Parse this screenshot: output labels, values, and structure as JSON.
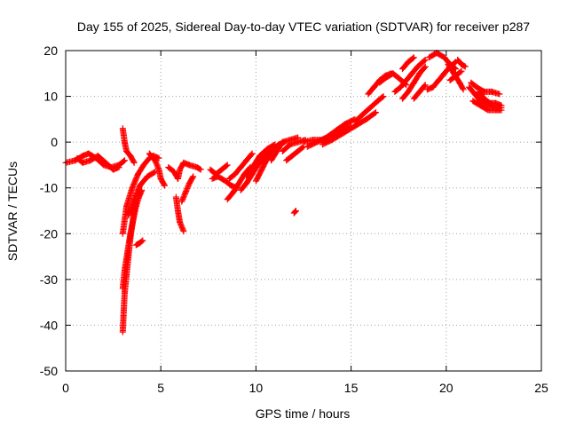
{
  "chart_data": {
    "type": "scatter",
    "title": "Day 155 of 2025, Sidereal Day-to-day VTEC variation (SDTVAR) for receiver p287",
    "xlabel": "GPS time / hours",
    "ylabel": "SDTVAR / TECUs",
    "xlim": [
      0,
      25
    ],
    "ylim": [
      -50,
      20
    ],
    "xticks": [
      0,
      5,
      10,
      15,
      20,
      25
    ],
    "yticks": [
      -50,
      -40,
      -30,
      -20,
      -10,
      0,
      10,
      20
    ],
    "grid": true,
    "marker": "+",
    "series": [
      {
        "name": "SDTVAR",
        "color": "#ff0000",
        "tracks": [
          [
            [
              0.0,
              -4.5
            ],
            [
              0.5,
              -4.0
            ],
            [
              0.9,
              -3.0
            ],
            [
              1.2,
              -2.5
            ],
            [
              1.6,
              -3.5
            ],
            [
              2.0,
              -5.0
            ],
            [
              2.4,
              -5.5
            ],
            [
              2.8,
              -5.0
            ],
            [
              3.1,
              -4.0
            ]
          ],
          [
            [
              0.6,
              -3.5
            ],
            [
              0.9,
              -4.5
            ],
            [
              1.3,
              -4.0
            ],
            [
              1.7,
              -3.0
            ],
            [
              2.1,
              -4.5
            ],
            [
              2.5,
              -6.0
            ],
            [
              2.8,
              -5.5
            ]
          ],
          [
            [
              3.0,
              3.0
            ],
            [
              3.1,
              0.0
            ],
            [
              3.2,
              -2.0
            ],
            [
              3.4,
              -3.0
            ],
            [
              3.6,
              -4.5
            ]
          ],
          [
            [
              3.0,
              -41.5
            ],
            [
              3.05,
              -37.0
            ],
            [
              3.1,
              -33.0
            ],
            [
              3.2,
              -29.0
            ],
            [
              3.3,
              -25.0
            ],
            [
              3.4,
              -21.0
            ],
            [
              3.5,
              -18.0
            ],
            [
              3.6,
              -15.0
            ],
            [
              3.7,
              -13.0
            ]
          ],
          [
            [
              3.0,
              -32.0
            ],
            [
              3.1,
              -28.0
            ],
            [
              3.25,
              -24.0
            ],
            [
              3.4,
              -20.0
            ],
            [
              3.55,
              -17.0
            ],
            [
              3.7,
              -14.0
            ],
            [
              3.85,
              -12.0
            ],
            [
              4.0,
              -10.5
            ]
          ],
          [
            [
              3.0,
              -20.0
            ],
            [
              3.2,
              -14.0
            ],
            [
              3.5,
              -10.0
            ],
            [
              3.8,
              -7.0
            ],
            [
              4.1,
              -5.0
            ],
            [
              4.4,
              -3.5
            ],
            [
              4.6,
              -3.0
            ],
            [
              4.9,
              -3.5
            ]
          ],
          [
            [
              3.3,
              -16.0
            ],
            [
              3.6,
              -12.5
            ],
            [
              3.9,
              -9.5
            ],
            [
              4.3,
              -7.5
            ],
            [
              4.7,
              -6.5
            ]
          ],
          [
            [
              3.7,
              -22.5
            ],
            [
              3.9,
              -22.0
            ],
            [
              4.05,
              -21.5
            ]
          ],
          [
            [
              4.4,
              -2.5
            ],
            [
              4.7,
              -4.0
            ],
            [
              4.9,
              -6.0
            ],
            [
              5.0,
              -8.0
            ],
            [
              5.2,
              -9.5
            ]
          ],
          [
            [
              5.4,
              -5.5
            ],
            [
              5.7,
              -6.5
            ],
            [
              5.9,
              -8.0
            ]
          ],
          [
            [
              5.8,
              -12.0
            ],
            [
              5.9,
              -15.0
            ],
            [
              6.0,
              -17.5
            ],
            [
              6.2,
              -19.5
            ]
          ],
          [
            [
              5.9,
              -8.0
            ],
            [
              6.0,
              -6.0
            ],
            [
              6.2,
              -4.5
            ],
            [
              6.5,
              -5.0
            ],
            [
              6.9,
              -5.5
            ],
            [
              7.1,
              -6.0
            ]
          ],
          [
            [
              6.1,
              -13.0
            ],
            [
              6.3,
              -11.0
            ],
            [
              6.5,
              -9.0
            ],
            [
              6.7,
              -7.5
            ]
          ],
          [
            [
              7.6,
              -6.0
            ],
            [
              7.9,
              -7.0
            ],
            [
              8.2,
              -6.0
            ],
            [
              8.5,
              -5.0
            ]
          ],
          [
            [
              7.7,
              -8.0
            ],
            [
              8.0,
              -7.5
            ],
            [
              8.4,
              -8.5
            ],
            [
              8.7,
              -9.5
            ],
            [
              9.0,
              -10.0
            ]
          ],
          [
            [
              8.5,
              -12.5
            ],
            [
              8.8,
              -11.0
            ],
            [
              9.1,
              -9.0
            ],
            [
              9.4,
              -7.0
            ],
            [
              9.7,
              -5.5
            ]
          ],
          [
            [
              8.6,
              -8.0
            ],
            [
              8.9,
              -7.0
            ],
            [
              9.2,
              -5.5
            ],
            [
              9.5,
              -4.0
            ],
            [
              9.8,
              -2.5
            ]
          ],
          [
            [
              9.2,
              -10.5
            ],
            [
              9.5,
              -9.0
            ],
            [
              9.8,
              -7.0
            ],
            [
              10.1,
              -5.0
            ],
            [
              10.4,
              -3.5
            ],
            [
              10.7,
              -2.0
            ]
          ],
          [
            [
              9.5,
              -7.5
            ],
            [
              9.9,
              -5.0
            ],
            [
              10.2,
              -3.0
            ],
            [
              10.6,
              -1.5
            ],
            [
              11.0,
              -0.5
            ]
          ],
          [
            [
              10.0,
              -8.5
            ],
            [
              10.3,
              -6.0
            ],
            [
              10.6,
              -3.5
            ],
            [
              10.9,
              -1.5
            ],
            [
              11.2,
              -0.5
            ],
            [
              11.5,
              0.0
            ]
          ],
          [
            [
              10.8,
              -4.0
            ],
            [
              11.1,
              -2.0
            ],
            [
              11.4,
              0.0
            ],
            [
              11.8,
              0.5
            ],
            [
              12.2,
              1.0
            ]
          ],
          [
            [
              11.6,
              -4.0
            ],
            [
              11.9,
              -3.0
            ],
            [
              12.2,
              -2.0
            ],
            [
              12.5,
              -1.0
            ]
          ],
          [
            [
              11.4,
              -2.0
            ],
            [
              11.8,
              -0.5
            ],
            [
              12.2,
              0.0
            ],
            [
              12.6,
              0.5
            ]
          ],
          [
            [
              12.5,
              0.0
            ],
            [
              13.0,
              0.5
            ],
            [
              13.5,
              0.5
            ],
            [
              14.0,
              1.5
            ],
            [
              14.5,
              2.5
            ],
            [
              15.0,
              3.5
            ]
          ],
          [
            [
              12.7,
              -1.0
            ],
            [
              13.2,
              0.0
            ],
            [
              13.7,
              1.0
            ],
            [
              14.2,
              2.5
            ],
            [
              14.7,
              4.0
            ],
            [
              15.2,
              5.0
            ]
          ],
          [
            [
              13.5,
              -0.5
            ],
            [
              14.0,
              0.5
            ],
            [
              14.6,
              2.0
            ],
            [
              15.2,
              3.5
            ],
            [
              15.8,
              5.0
            ],
            [
              16.3,
              6.5
            ]
          ],
          [
            [
              15.2,
              4.5
            ],
            [
              15.6,
              6.0
            ],
            [
              16.0,
              7.5
            ],
            [
              16.4,
              9.0
            ],
            [
              16.7,
              10.0
            ]
          ],
          [
            [
              12.0,
              -15.5
            ],
            [
              12.1,
              -15.0
            ]
          ],
          [
            [
              15.9,
              10.5
            ],
            [
              16.2,
              12.0
            ],
            [
              16.5,
              13.5
            ],
            [
              16.8,
              14.5
            ],
            [
              17.1,
              15.0
            ]
          ],
          [
            [
              16.5,
              13.0
            ],
            [
              16.8,
              14.0
            ],
            [
              17.2,
              15.0
            ],
            [
              17.5,
              14.0
            ],
            [
              17.9,
              12.5
            ]
          ],
          [
            [
              17.3,
              11.0
            ],
            [
              17.6,
              12.0
            ],
            [
              17.9,
              13.5
            ],
            [
              18.2,
              15.0
            ],
            [
              18.5,
              16.5
            ],
            [
              18.9,
              18.0
            ]
          ],
          [
            [
              17.7,
              9.5
            ],
            [
              18.0,
              11.0
            ],
            [
              18.3,
              13.0
            ],
            [
              18.6,
              15.0
            ],
            [
              18.9,
              16.5
            ]
          ],
          [
            [
              19.1,
              18.5
            ],
            [
              19.5,
              19.5
            ],
            [
              19.9,
              18.5
            ],
            [
              20.2,
              17.0
            ],
            [
              20.5,
              16.0
            ]
          ],
          [
            [
              19.0,
              11.5
            ],
            [
              19.3,
              12.0
            ],
            [
              19.6,
              13.5
            ],
            [
              19.9,
              15.0
            ],
            [
              20.2,
              16.5
            ],
            [
              20.5,
              17.5
            ]
          ],
          [
            [
              20.1,
              17.0
            ],
            [
              20.4,
              15.0
            ],
            [
              20.7,
              13.0
            ],
            [
              20.9,
              11.5
            ]
          ],
          [
            [
              20.2,
              13.5
            ],
            [
              20.5,
              14.5
            ],
            [
              20.8,
              15.5
            ]
          ],
          [
            [
              20.6,
              18.0
            ],
            [
              20.8,
              17.0
            ],
            [
              21.0,
              16.5
            ]
          ],
          [
            [
              21.2,
              12.0
            ],
            [
              21.5,
              10.5
            ],
            [
              21.8,
              9.0
            ],
            [
              22.2,
              8.0
            ],
            [
              22.6,
              7.5
            ],
            [
              22.9,
              7.5
            ]
          ],
          [
            [
              21.4,
              9.0
            ],
            [
              21.8,
              8.0
            ],
            [
              22.2,
              7.0
            ],
            [
              22.6,
              7.0
            ],
            [
              22.9,
              7.0
            ]
          ],
          [
            [
              21.3,
              13.0
            ],
            [
              21.6,
              12.0
            ],
            [
              22.0,
              11.0
            ],
            [
              22.4,
              11.0
            ],
            [
              22.8,
              10.5
            ]
          ],
          [
            [
              21.7,
              11.0
            ],
            [
              22.0,
              9.5
            ],
            [
              22.3,
              8.5
            ],
            [
              22.6,
              8.5
            ],
            [
              22.9,
              8.0
            ]
          ],
          [
            [
              18.3,
              9.5
            ],
            [
              18.6,
              11.0
            ],
            [
              18.9,
              12.5
            ]
          ],
          [
            [
              17.7,
              16.0
            ],
            [
              18.0,
              17.5
            ],
            [
              18.3,
              18.5
            ]
          ]
        ]
      }
    ]
  }
}
